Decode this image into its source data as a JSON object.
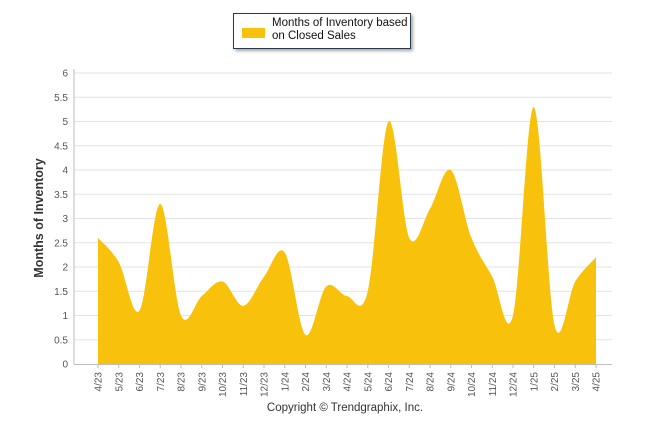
{
  "legend": {
    "entries": [
      {
        "label": "Months of Inventory based on Closed Sales",
        "color": "#f8c20c"
      }
    ]
  },
  "footer": {
    "copyright": "Copyright © Trendgraphix, Inc."
  },
  "chart_data": {
    "type": "area",
    "title": "",
    "xlabel": "",
    "ylabel": "Months of Inventory",
    "ylim": [
      0,
      6
    ],
    "yticks": [
      "0",
      "0.5",
      "1",
      "1.5",
      "2",
      "2.5",
      "3",
      "3.5",
      "4",
      "4.5",
      "5",
      "5.5",
      "6"
    ],
    "grid": true,
    "legend_position": "top-center",
    "categories": [
      "4/23",
      "5/23",
      "6/23",
      "7/23",
      "8/23",
      "9/23",
      "10/23",
      "11/23",
      "12/23",
      "1/24",
      "2/24",
      "3/24",
      "4/24",
      "5/24",
      "6/24",
      "7/24",
      "8/24",
      "9/24",
      "10/24",
      "11/24",
      "12/24",
      "1/25",
      "2/25",
      "3/25",
      "4/25"
    ],
    "series": [
      {
        "name": "Months of Inventory based on Closed Sales",
        "color": "#f8c20c",
        "values": [
          2.6,
          2.1,
          1.1,
          3.3,
          1.0,
          1.4,
          1.7,
          1.2,
          1.8,
          2.3,
          0.6,
          1.6,
          1.4,
          1.5,
          5.0,
          2.6,
          3.2,
          4.0,
          2.6,
          1.8,
          1.0,
          5.3,
          0.8,
          1.7,
          2.2
        ]
      }
    ]
  }
}
